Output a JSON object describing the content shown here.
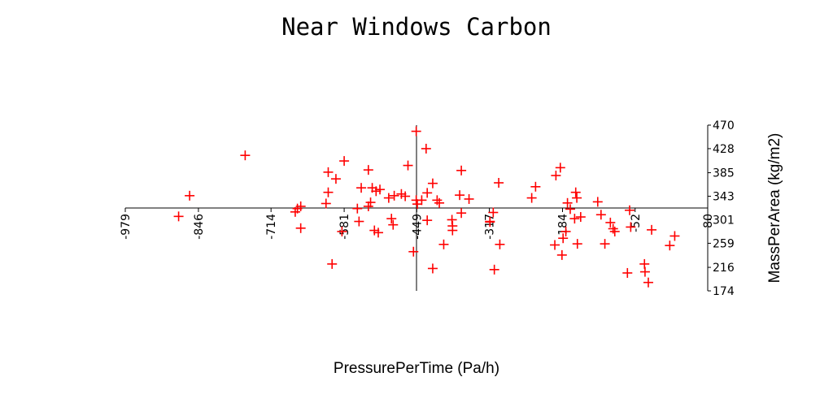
{
  "chart_data": {
    "type": "scatter",
    "title": "Near Windows Carbon",
    "xlabel": "PressurePerTime (Pa/h)",
    "ylabel": "MassPerArea (kg/m2)",
    "xlim": [
      -979,
      80
    ],
    "ylim": [
      174,
      470
    ],
    "x_ticks": [
      "-979",
      "-846",
      "-714",
      "-581",
      "-449",
      "-317",
      "-184",
      "-52",
      "80"
    ],
    "y_ticks": [
      "470",
      "428",
      "385",
      "343",
      "301",
      "259",
      "216",
      "174"
    ],
    "grid": false,
    "marker": "plus",
    "color": "#ff0000",
    "points": [
      [
        -882,
        307
      ],
      [
        -862,
        344
      ],
      [
        -761,
        416
      ],
      [
        -670,
        315
      ],
      [
        -666,
        321
      ],
      [
        -660,
        325
      ],
      [
        -660,
        286
      ],
      [
        -614,
        330
      ],
      [
        -610,
        386
      ],
      [
        -610,
        350
      ],
      [
        -603,
        222
      ],
      [
        -596,
        374
      ],
      [
        -585,
        280
      ],
      [
        -581,
        406
      ],
      [
        -557,
        321
      ],
      [
        -554,
        298
      ],
      [
        -550,
        358
      ],
      [
        -537,
        390
      ],
      [
        -537,
        325
      ],
      [
        -533,
        332
      ],
      [
        -530,
        358
      ],
      [
        -526,
        282
      ],
      [
        -523,
        352
      ],
      [
        -519,
        278
      ],
      [
        -516,
        355
      ],
      [
        -500,
        340
      ],
      [
        -495,
        303
      ],
      [
        -492,
        292
      ],
      [
        -490,
        344
      ],
      [
        -477,
        347
      ],
      [
        -470,
        343
      ],
      [
        -465,
        398
      ],
      [
        -455,
        244
      ],
      [
        -450,
        459
      ],
      [
        -450,
        336
      ],
      [
        -448,
        329
      ],
      [
        -440,
        336
      ],
      [
        -432,
        428
      ],
      [
        -430,
        349
      ],
      [
        -430,
        300
      ],
      [
        -420,
        366
      ],
      [
        -420,
        214
      ],
      [
        -412,
        336
      ],
      [
        -408,
        331
      ],
      [
        -400,
        257
      ],
      [
        -385,
        301
      ],
      [
        -384,
        290
      ],
      [
        -384,
        282
      ],
      [
        -371,
        345
      ],
      [
        -368,
        389
      ],
      [
        -368,
        313
      ],
      [
        -354,
        338
      ],
      [
        -316,
        298
      ],
      [
        -316,
        297
      ],
      [
        -310,
        314
      ],
      [
        -308,
        212
      ],
      [
        -300,
        367
      ],
      [
        -298,
        257
      ],
      [
        -240,
        340
      ],
      [
        -233,
        360
      ],
      [
        -198,
        256
      ],
      [
        -196,
        380
      ],
      [
        -188,
        394
      ],
      [
        -185,
        238
      ],
      [
        -183,
        268
      ],
      [
        -178,
        280
      ],
      [
        -175,
        331
      ],
      [
        -170,
        320
      ],
      [
        -162,
        303
      ],
      [
        -160,
        350
      ],
      [
        -158,
        340
      ],
      [
        -157,
        258
      ],
      [
        -151,
        306
      ],
      [
        -120,
        333
      ],
      [
        -114,
        310
      ],
      [
        -107,
        258
      ],
      [
        -97,
        296
      ],
      [
        -92,
        285
      ],
      [
        -89,
        280
      ],
      [
        -66,
        206
      ],
      [
        -62,
        318
      ],
      [
        -60,
        288
      ],
      [
        -35,
        222
      ],
      [
        -34,
        208
      ],
      [
        -28,
        189
      ],
      [
        -22,
        283
      ],
      [
        11,
        255
      ],
      [
        20,
        272
      ]
    ]
  }
}
